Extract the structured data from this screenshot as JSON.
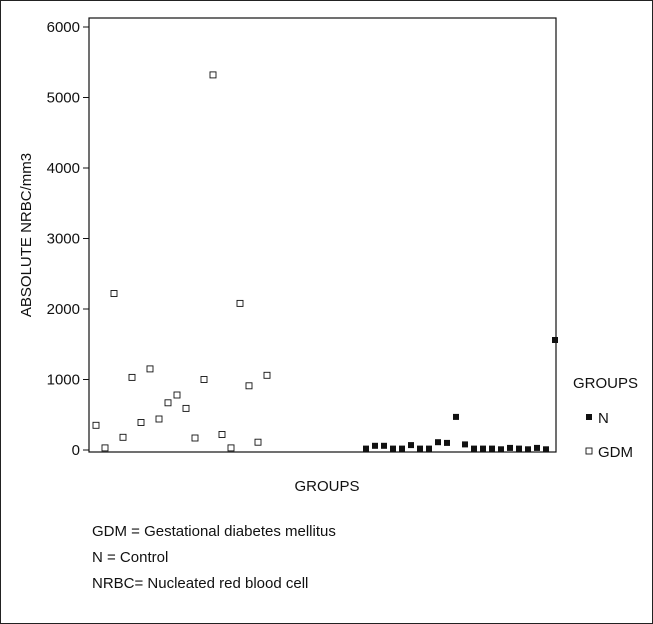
{
  "chart_data": {
    "type": "scatter",
    "title": "",
    "xlabel": "GROUPS",
    "ylabel": "ABSOLUTE NRBC/mm3",
    "ylim": [
      0,
      6000
    ],
    "yticks": [
      "0",
      "1000",
      "2000",
      "3000",
      "4000",
      "5000",
      "6000"
    ],
    "legend": {
      "title": "GROUPS",
      "position": "right",
      "entries": [
        {
          "label": "N",
          "marker": "filled-square"
        },
        {
          "label": "GDM",
          "marker": "open-square"
        }
      ]
    },
    "series": [
      {
        "name": "GDM",
        "marker": "open-square",
        "x": [
          1,
          2,
          3,
          4,
          5,
          6,
          7,
          8,
          9,
          10,
          11,
          12,
          13,
          14,
          15,
          16,
          17,
          18,
          19,
          20
        ],
        "y": [
          350,
          30,
          2220,
          180,
          1030,
          390,
          1150,
          440,
          670,
          780,
          590,
          170,
          1000,
          5320,
          220,
          30,
          2080,
          910,
          110,
          1060
        ]
      },
      {
        "name": "N",
        "marker": "filled-square",
        "x": [
          31,
          32,
          33,
          34,
          35,
          36,
          37,
          38,
          39,
          40,
          41,
          42,
          43,
          44,
          45,
          46,
          47,
          48,
          49,
          50,
          51,
          52
        ],
        "y": [
          20,
          60,
          60,
          20,
          20,
          70,
          20,
          20,
          110,
          100,
          470,
          80,
          20,
          20,
          20,
          10,
          30,
          20,
          10,
          30,
          10,
          1560
        ]
      }
    ]
  },
  "notes": [
    "GDM = Gestational diabetes mellitus",
    "N = Control",
    "NRBC= Nucleated red blood cell"
  ]
}
